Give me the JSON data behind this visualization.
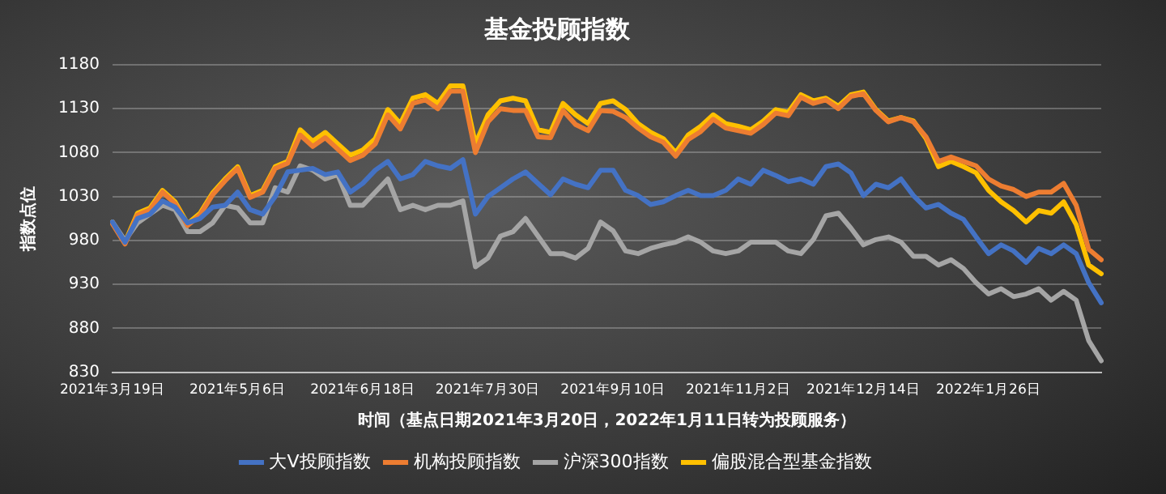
{
  "chart_data": {
    "type": "line",
    "title": "基金投顾指数",
    "xlabel": "时间（基点日期2021年3月20日，2022年1月11日转为投顾服务）",
    "ylabel": "指数点位",
    "categories": [
      "2021年3月19日",
      null,
      null,
      null,
      null,
      null,
      null,
      null,
      null,
      null,
      "2021年5月6日",
      null,
      null,
      null,
      null,
      null,
      null,
      null,
      null,
      null,
      "2021年6月18日",
      null,
      null,
      null,
      null,
      null,
      null,
      null,
      null,
      null,
      "2021年7月30日",
      null,
      null,
      null,
      null,
      null,
      null,
      null,
      null,
      null,
      "2021年9月10日",
      null,
      null,
      null,
      null,
      null,
      null,
      null,
      null,
      null,
      "2021年11月2日",
      null,
      null,
      null,
      null,
      null,
      null,
      null,
      null,
      null,
      "2021年12月14日",
      null,
      null,
      null,
      null,
      null,
      null,
      null,
      null,
      null,
      "2022年1月26日",
      null,
      null,
      null,
      null,
      null,
      null,
      null,
      null,
      null
    ],
    "ylim": [
      830,
      1180
    ],
    "yticks": [
      830,
      880,
      930,
      980,
      1030,
      1080,
      1130,
      1180
    ],
    "grid": "y",
    "legend": "bottom",
    "marker": "none",
    "line_style": "solid",
    "series": [
      {
        "name": "大V投顾指数",
        "color": "#4472c4",
        "values": [
          1001,
          978,
          1005,
          1010,
          1025,
          1018,
          1000,
          1005,
          1018,
          1020,
          1035,
          1015,
          1010,
          1030,
          1058,
          1060,
          1062,
          1055,
          1058,
          1035,
          1045,
          1060,
          1070,
          1050,
          1055,
          1070,
          1065,
          1062,
          1072,
          1010,
          1030,
          1040,
          1050,
          1058,
          1045,
          1032,
          1050,
          1044,
          1040,
          1060,
          1060,
          1037,
          1031,
          1021,
          1024,
          1031,
          1037,
          1031,
          1031,
          1037,
          1050,
          1044,
          1060,
          1054,
          1047,
          1050,
          1044,
          1064,
          1067,
          1057,
          1031,
          1044,
          1040,
          1050,
          1031,
          1017,
          1021,
          1011,
          1004,
          984,
          965,
          975,
          968,
          955,
          971,
          965,
          975,
          965,
          932,
          909
        ]
      },
      {
        "name": "机构投顾指数",
        "color": "#ed7d31",
        "values": [
          999,
          976,
          1009,
          1015,
          1035,
          1022,
          997,
          1009,
          1032,
          1048,
          1062,
          1029,
          1035,
          1062,
          1068,
          1100,
          1087,
          1097,
          1084,
          1071,
          1077,
          1090,
          1123,
          1107,
          1136,
          1140,
          1130,
          1150,
          1150,
          1080,
          1115,
          1130,
          1128,
          1128,
          1098,
          1097,
          1128,
          1112,
          1105,
          1128,
          1127,
          1120,
          1108,
          1098,
          1092,
          1076,
          1095,
          1104,
          1118,
          1108,
          1105,
          1102,
          1112,
          1125,
          1122,
          1143,
          1136,
          1140,
          1130,
          1144,
          1147,
          1128,
          1115,
          1120,
          1115,
          1098,
          1070,
          1075,
          1070,
          1065,
          1050,
          1042,
          1038,
          1030,
          1035,
          1035,
          1045,
          1020,
          970,
          958
        ]
      },
      {
        "name": "沪深300指数",
        "color": "#a5a5a5",
        "values": [
          1001,
          980,
          1000,
          1010,
          1020,
          1015,
          990,
          990,
          1000,
          1020,
          1017,
          1000,
          1000,
          1040,
          1035,
          1065,
          1060,
          1050,
          1055,
          1020,
          1020,
          1035,
          1050,
          1015,
          1020,
          1015,
          1020,
          1020,
          1025,
          950,
          960,
          985,
          990,
          1005,
          985,
          965,
          965,
          960,
          971,
          1001,
          991,
          968,
          965,
          971,
          975,
          978,
          984,
          978,
          968,
          965,
          968,
          978,
          978,
          978,
          968,
          965,
          981,
          1008,
          1011,
          994,
          975,
          981,
          984,
          978,
          962,
          962,
          952,
          958,
          948,
          932,
          919,
          925,
          916,
          919,
          925,
          912,
          922,
          912,
          866,
          843
        ]
      },
      {
        "name": "偏股混合型基金指数",
        "color": "#ffc000",
        "values": [
          1001,
          978,
          1011,
          1017,
          1037,
          1024,
          999,
          1011,
          1034,
          1050,
          1064,
          1031,
          1037,
          1064,
          1070,
          1106,
          1093,
          1103,
          1090,
          1077,
          1083,
          1096,
          1129,
          1113,
          1142,
          1146,
          1136,
          1156,
          1156,
          1090,
          1123,
          1139,
          1142,
          1139,
          1106,
          1103,
          1136,
          1123,
          1113,
          1136,
          1139,
          1129,
          1113,
          1103,
          1096,
          1080,
          1100,
          1110,
          1123,
          1113,
          1110,
          1106,
          1116,
          1129,
          1126,
          1146,
          1139,
          1142,
          1133,
          1146,
          1149,
          1129,
          1116,
          1120,
          1116,
          1096,
          1064,
          1070,
          1064,
          1057,
          1037,
          1024,
          1014,
          1001,
          1014,
          1011,
          1024,
          998,
          952,
          942
        ]
      }
    ]
  }
}
